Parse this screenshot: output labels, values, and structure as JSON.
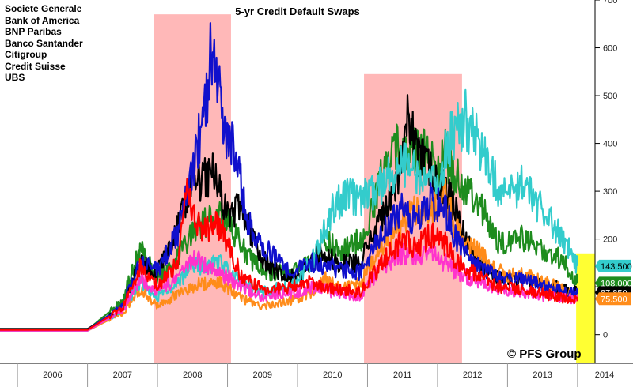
{
  "chart_data": {
    "type": "line",
    "title": "5-yr Credit Default Swaps",
    "watermark": "© PFS Group",
    "x_tick_labels": [
      "2006",
      "2007",
      "2008",
      "2009",
      "2010",
      "2011",
      "2012",
      "2013",
      "2014"
    ],
    "x_range": [
      2005.75,
      2014.25
    ],
    "y_ticks": [
      0,
      100,
      200,
      300,
      400,
      500,
      600,
      700
    ],
    "y_range": [
      -60,
      700
    ],
    "shaded_periods": [
      {
        "start": 2007.95,
        "end": 2009.05,
        "top": 670,
        "color": "#ffb8b8"
      },
      {
        "start": 2010.95,
        "end": 2012.35,
        "top": 545,
        "color": "#ffb8b8"
      },
      {
        "start": 2013.98,
        "end": 2014.25,
        "top": 170,
        "color": "#ffff33"
      }
    ],
    "series": [
      {
        "name": "Societe Generale",
        "color": "#1e8c1e",
        "last_label": "108.000",
        "points": [
          [
            2005.75,
            10
          ],
          [
            2007.0,
            10
          ],
          [
            2007.5,
            70
          ],
          [
            2007.75,
            180
          ],
          [
            2008.0,
            120
          ],
          [
            2008.2,
            140
          ],
          [
            2008.5,
            210
          ],
          [
            2008.8,
            250
          ],
          [
            2009.0,
            240
          ],
          [
            2009.3,
            160
          ],
          [
            2009.6,
            130
          ],
          [
            2009.9,
            130
          ],
          [
            2010.2,
            150
          ],
          [
            2010.4,
            200
          ],
          [
            2010.6,
            170
          ],
          [
            2010.9,
            200
          ],
          [
            2011.0,
            220
          ],
          [
            2011.2,
            330
          ],
          [
            2011.45,
            400
          ],
          [
            2011.6,
            380
          ],
          [
            2011.8,
            380
          ],
          [
            2012.0,
            340
          ],
          [
            2012.1,
            380
          ],
          [
            2012.3,
            320
          ],
          [
            2012.6,
            270
          ],
          [
            2012.9,
            190
          ],
          [
            2013.2,
            200
          ],
          [
            2013.5,
            175
          ],
          [
            2013.8,
            155
          ],
          [
            2014.0,
            108
          ]
        ]
      },
      {
        "name": "Bank of America",
        "color": "#000000",
        "last_label": "87.850",
        "points": [
          [
            2005.75,
            12
          ],
          [
            2007.0,
            12
          ],
          [
            2007.5,
            55
          ],
          [
            2007.75,
            150
          ],
          [
            2008.0,
            130
          ],
          [
            2008.3,
            230
          ],
          [
            2008.5,
            310
          ],
          [
            2008.8,
            340
          ],
          [
            2009.0,
            250
          ],
          [
            2009.2,
            270
          ],
          [
            2009.45,
            170
          ],
          [
            2009.7,
            130
          ],
          [
            2010.0,
            120
          ],
          [
            2010.3,
            170
          ],
          [
            2010.6,
            150
          ],
          [
            2010.9,
            150
          ],
          [
            2011.2,
            240
          ],
          [
            2011.45,
            320
          ],
          [
            2011.55,
            470
          ],
          [
            2011.7,
            380
          ],
          [
            2011.85,
            350
          ],
          [
            2012.0,
            320
          ],
          [
            2012.2,
            280
          ],
          [
            2012.4,
            200
          ],
          [
            2012.6,
            150
          ],
          [
            2012.9,
            120
          ],
          [
            2013.3,
            110
          ],
          [
            2013.7,
            100
          ],
          [
            2014.0,
            88
          ]
        ]
      },
      {
        "name": "BNP Paribas",
        "color": "#ff8c1a",
        "last_label": "75.500",
        "points": [
          [
            2005.75,
            8
          ],
          [
            2007.0,
            8
          ],
          [
            2007.5,
            45
          ],
          [
            2007.75,
            95
          ],
          [
            2008.0,
            60
          ],
          [
            2008.3,
            85
          ],
          [
            2008.6,
            105
          ],
          [
            2008.9,
            110
          ],
          [
            2009.2,
            75
          ],
          [
            2009.5,
            60
          ],
          [
            2009.9,
            70
          ],
          [
            2010.2,
            90
          ],
          [
            2010.4,
            115
          ],
          [
            2010.6,
            95
          ],
          [
            2010.9,
            110
          ],
          [
            2011.2,
            180
          ],
          [
            2011.5,
            240
          ],
          [
            2011.7,
            260
          ],
          [
            2011.9,
            250
          ],
          [
            2012.1,
            290
          ],
          [
            2012.3,
            210
          ],
          [
            2012.6,
            170
          ],
          [
            2012.9,
            130
          ],
          [
            2013.3,
            120
          ],
          [
            2013.7,
            100
          ],
          [
            2014.0,
            75
          ]
        ]
      },
      {
        "name": "Banco Santander",
        "color": "#33cccc",
        "last_label": "143.500",
        "points": [
          [
            2005.75,
            8
          ],
          [
            2007.0,
            8
          ],
          [
            2007.5,
            50
          ],
          [
            2007.75,
            110
          ],
          [
            2008.0,
            80
          ],
          [
            2008.3,
            110
          ],
          [
            2008.5,
            140
          ],
          [
            2008.9,
            150
          ],
          [
            2009.2,
            110
          ],
          [
            2009.5,
            90
          ],
          [
            2009.9,
            100
          ],
          [
            2010.2,
            150
          ],
          [
            2010.5,
            260
          ],
          [
            2010.7,
            300
          ],
          [
            2010.9,
            280
          ],
          [
            2011.2,
            310
          ],
          [
            2011.4,
            340
          ],
          [
            2011.6,
            360
          ],
          [
            2011.8,
            310
          ],
          [
            2012.0,
            320
          ],
          [
            2012.2,
            420
          ],
          [
            2012.4,
            450
          ],
          [
            2012.6,
            400
          ],
          [
            2012.9,
            300
          ],
          [
            2013.2,
            310
          ],
          [
            2013.5,
            260
          ],
          [
            2013.8,
            200
          ],
          [
            2014.0,
            143.5
          ]
        ]
      },
      {
        "name": "Citigroup",
        "color": "#1010cc",
        "last_label": "",
        "points": [
          [
            2005.75,
            10
          ],
          [
            2007.0,
            10
          ],
          [
            2007.5,
            60
          ],
          [
            2007.75,
            150
          ],
          [
            2008.0,
            135
          ],
          [
            2008.3,
            215
          ],
          [
            2008.5,
            340
          ],
          [
            2008.7,
            490
          ],
          [
            2008.8,
            640
          ],
          [
            2008.95,
            430
          ],
          [
            2009.1,
            390
          ],
          [
            2009.3,
            230
          ],
          [
            2009.6,
            170
          ],
          [
            2009.9,
            130
          ],
          [
            2010.2,
            150
          ],
          [
            2010.5,
            140
          ],
          [
            2010.9,
            130
          ],
          [
            2011.2,
            210
          ],
          [
            2011.5,
            270
          ],
          [
            2011.7,
            230
          ],
          [
            2011.9,
            280
          ],
          [
            2012.1,
            260
          ],
          [
            2012.3,
            190
          ],
          [
            2012.6,
            140
          ],
          [
            2012.9,
            120
          ],
          [
            2013.3,
            110
          ],
          [
            2013.7,
            95
          ],
          [
            2014.0,
            85
          ]
        ]
      },
      {
        "name": "Credit Suisse",
        "color": "#ff33cc",
        "last_label": "",
        "points": [
          [
            2005.75,
            8
          ],
          [
            2007.0,
            8
          ],
          [
            2007.5,
            50
          ],
          [
            2007.75,
            120
          ],
          [
            2008.0,
            90
          ],
          [
            2008.3,
            120
          ],
          [
            2008.5,
            160
          ],
          [
            2008.9,
            130
          ],
          [
            2009.2,
            100
          ],
          [
            2009.5,
            80
          ],
          [
            2009.9,
            85
          ],
          [
            2010.2,
            100
          ],
          [
            2010.5,
            90
          ],
          [
            2010.9,
            80
          ],
          [
            2011.2,
            140
          ],
          [
            2011.5,
            170
          ],
          [
            2011.7,
            160
          ],
          [
            2011.9,
            170
          ],
          [
            2012.1,
            150
          ],
          [
            2012.3,
            130
          ],
          [
            2012.6,
            110
          ],
          [
            2012.9,
            95
          ],
          [
            2013.3,
            85
          ],
          [
            2013.7,
            78
          ],
          [
            2014.0,
            72
          ]
        ]
      },
      {
        "name": "UBS",
        "color": "#ff0000",
        "last_label": "",
        "points": [
          [
            2005.75,
            10
          ],
          [
            2007.0,
            10
          ],
          [
            2007.5,
            55
          ],
          [
            2007.75,
            140
          ],
          [
            2008.0,
            100
          ],
          [
            2008.3,
            150
          ],
          [
            2008.4,
            320
          ],
          [
            2008.6,
            220
          ],
          [
            2008.9,
            230
          ],
          [
            2009.2,
            120
          ],
          [
            2009.5,
            95
          ],
          [
            2009.9,
            100
          ],
          [
            2010.2,
            110
          ],
          [
            2010.5,
            95
          ],
          [
            2010.9,
            90
          ],
          [
            2011.2,
            150
          ],
          [
            2011.5,
            200
          ],
          [
            2011.7,
            180
          ],
          [
            2011.9,
            210
          ],
          [
            2012.1,
            190
          ],
          [
            2012.3,
            150
          ],
          [
            2012.6,
            120
          ],
          [
            2012.9,
            100
          ],
          [
            2013.3,
            90
          ],
          [
            2013.7,
            80
          ],
          [
            2014.0,
            70
          ]
        ]
      }
    ]
  }
}
